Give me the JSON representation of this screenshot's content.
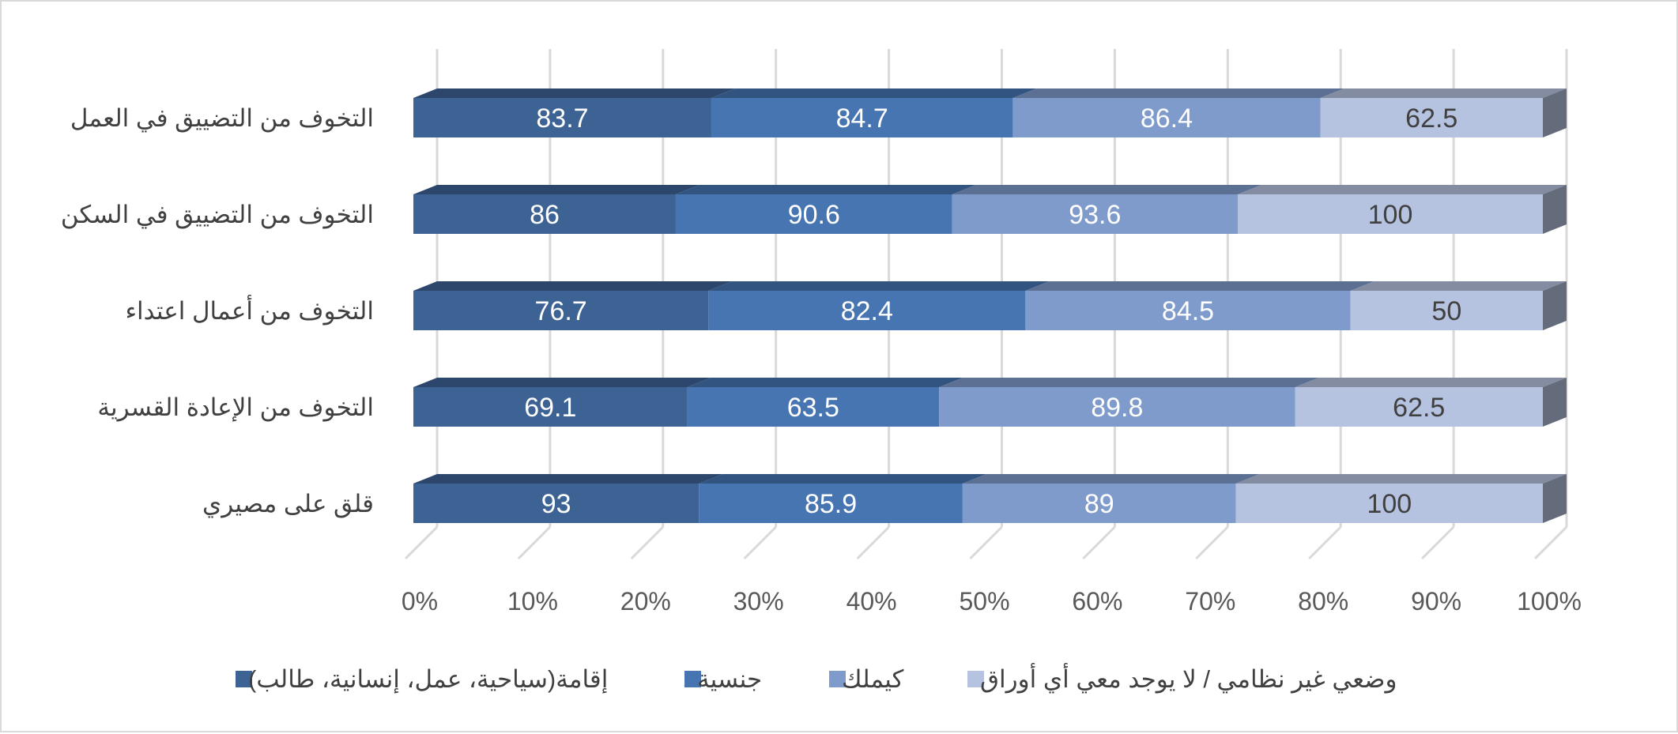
{
  "chart_data": {
    "type": "bar",
    "orientation": "horizontal",
    "stacking": "percent",
    "three_d": true,
    "categories": [
      "التخوف من التضييق في العمل",
      "التخوف من التضييق في السكن",
      "التخوف من أعمال اعتداء",
      "التخوف من الإعادة القسرية",
      "قلق على مصيري"
    ],
    "series": [
      {
        "name": "إقامة(سياحية، عمل، إنسانية، طالب)",
        "color": "#3d6394",
        "values": [
          83.7,
          86,
          76.7,
          69.1,
          93
        ]
      },
      {
        "name": "جنسية",
        "color": "#4675b2",
        "values": [
          84.7,
          90.6,
          82.4,
          63.5,
          85.9
        ]
      },
      {
        "name": "كيملك",
        "color": "#7e9bcb",
        "values": [
          86.4,
          93.6,
          84.5,
          89.8,
          89
        ]
      },
      {
        "name": "وضعي غير نظامي / لا يوجد معي أي أوراق",
        "color": "#b6c3e0",
        "values": [
          62.5,
          100,
          50,
          62.5,
          100
        ]
      }
    ],
    "data_label_colors": [
      "#ffffff",
      "#ffffff",
      "#ffffff",
      "#404040"
    ],
    "x_ticks": [
      "0%",
      "10%",
      "20%",
      "30%",
      "40%",
      "50%",
      "60%",
      "70%",
      "80%",
      "90%",
      "100%"
    ],
    "xlim": [
      0,
      100
    ],
    "grid": true,
    "legend_position": "bottom",
    "title": "",
    "xlabel": "",
    "ylabel": ""
  }
}
